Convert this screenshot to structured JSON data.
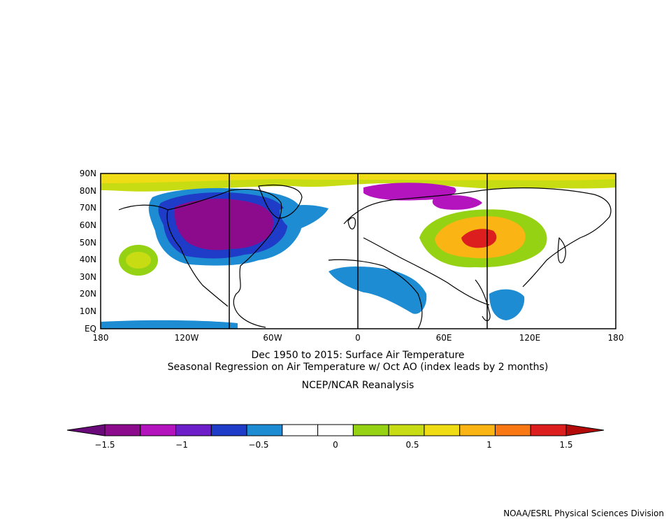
{
  "map": {
    "lat_labels": [
      "90N",
      "80N",
      "70N",
      "60N",
      "50N",
      "40N",
      "30N",
      "20N",
      "10N",
      "EQ"
    ],
    "lon_labels": [
      "180",
      "120W",
      "60W",
      "0",
      "60E",
      "120E",
      "180"
    ],
    "extent": {
      "lon_min": -180,
      "lon_max": 180,
      "lat_min": 0,
      "lat_max": 90
    }
  },
  "titles": {
    "line1": "Dec 1950 to 2015: Surface Air Temperature",
    "line2": "Seasonal Regression on Air Temperature  w/ Oct AO (index leads by 2 months)",
    "line3": "NCEP/NCAR Reanalysis"
  },
  "colorbar": {
    "labels": [
      "−1.5",
      "−1",
      "−0.5",
      "0",
      "0.5",
      "1",
      "1.5"
    ],
    "colors": [
      "#6a0a7a",
      "#8c0a8c",
      "#b414be",
      "#6e1ec8",
      "#1e3cc8",
      "#1e8cd2",
      "#ffffff",
      "#ffffff",
      "#96d214",
      "#c8dc14",
      "#f0dc14",
      "#fab414",
      "#fa7814",
      "#dc1e1e",
      "#b40a0a"
    ]
  },
  "credit": "NOAA/ESRL Physical Sciences Division"
}
